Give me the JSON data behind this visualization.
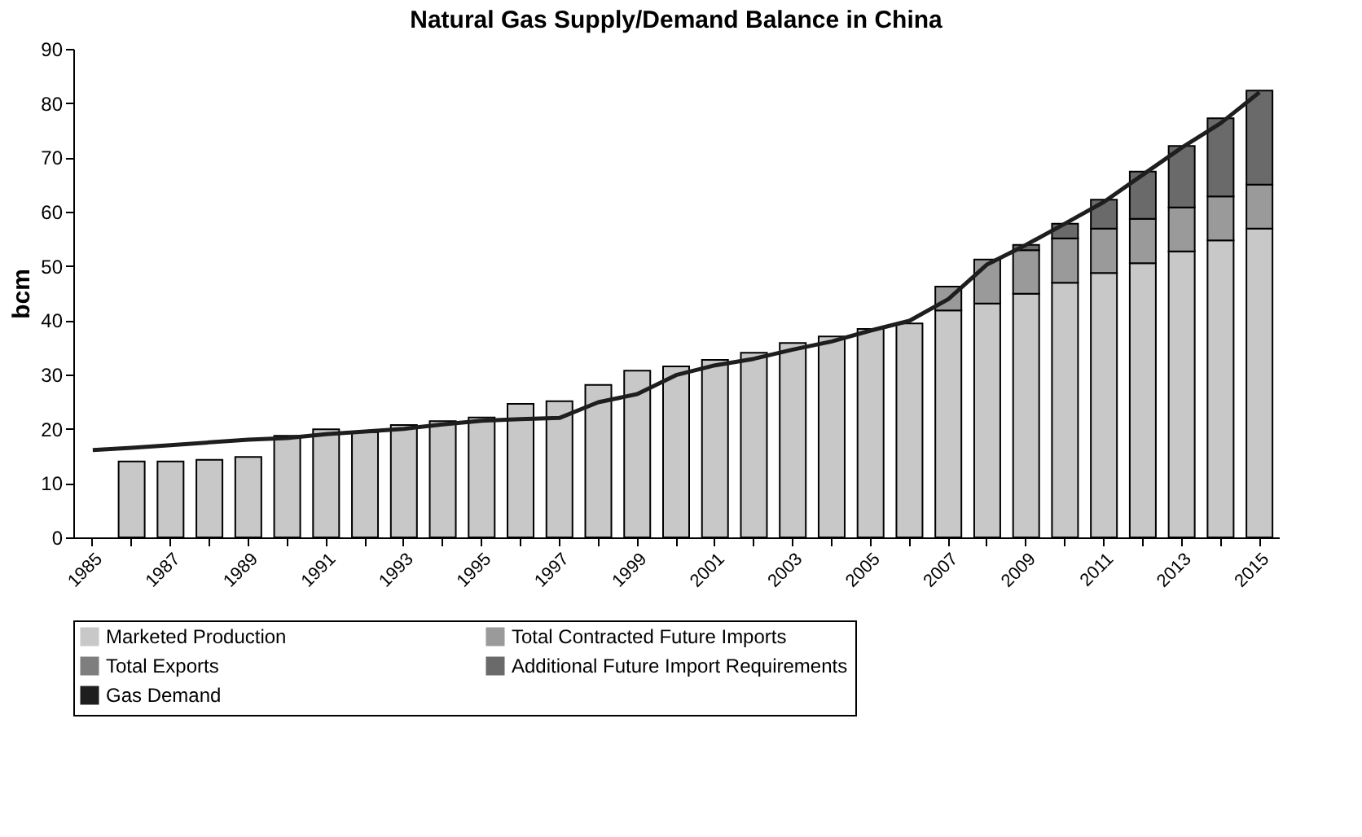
{
  "chart_data": {
    "type": "bar",
    "title": "Natural Gas Supply/Demand Balance in China",
    "ylabel": "bcm",
    "stacked": true,
    "categories": [
      "1985",
      null,
      "1987",
      null,
      "1989",
      null,
      "1991",
      null,
      "1993",
      null,
      "1995",
      null,
      "1997",
      null,
      "1999",
      null,
      "2001",
      null,
      "2003",
      null,
      "2005",
      null,
      "2007",
      null,
      "2009",
      null,
      "2011",
      null,
      "2013",
      null,
      "2015"
    ],
    "series": [
      {
        "name": "Marketed Production",
        "color": "#c8c8c8",
        "values": [
          null,
          14.0,
          14.0,
          14.3,
          14.8,
          18.7,
          19.9,
          19.4,
          20.7,
          21.4,
          22.1,
          24.6,
          25.1,
          28.1,
          30.7,
          31.5,
          32.7,
          34.0,
          35.8,
          37.0,
          38.4,
          39.4,
          41.8,
          43.1,
          44.9,
          46.9,
          48.7,
          50.5,
          52.7,
          54.7,
          56.9
        ]
      },
      {
        "name": "Total Contracted Future Imports",
        "color": "#9a9a9a",
        "values": [
          null,
          null,
          null,
          null,
          null,
          null,
          null,
          null,
          null,
          null,
          null,
          null,
          null,
          null,
          null,
          null,
          null,
          null,
          null,
          null,
          null,
          null,
          4.4,
          8.1,
          8.0,
          8.2,
          8.2,
          8.2,
          8.1,
          8.1,
          8.1
        ]
      },
      {
        "name": "Total Exports",
        "color": "#7e7e7e",
        "values": [
          null,
          null,
          null,
          null,
          null,
          null,
          null,
          null,
          null,
          null,
          null,
          null,
          null,
          null,
          null,
          null,
          null,
          null,
          null,
          null,
          null,
          null,
          null,
          null,
          null,
          null,
          null,
          null,
          null,
          null,
          null
        ]
      },
      {
        "name": "Additional Future Import Requirements",
        "color": "#6a6a6a",
        "values": [
          null,
          null,
          null,
          null,
          null,
          null,
          null,
          null,
          null,
          null,
          null,
          null,
          null,
          null,
          null,
          null,
          null,
          null,
          null,
          null,
          null,
          null,
          null,
          null,
          1.0,
          2.7,
          5.3,
          8.7,
          11.3,
          14.4,
          17.3
        ]
      },
      {
        "name": "Gas Demand",
        "type": "line",
        "color": "#1e1e1e",
        "values": [
          16.1,
          16.5,
          17.0,
          17.5,
          18.0,
          18.3,
          19.0,
          19.5,
          20.0,
          20.8,
          21.5,
          21.8,
          22.0,
          24.9,
          26.4,
          29.9,
          31.7,
          32.9,
          34.6,
          36.1,
          38.1,
          39.9,
          43.9,
          50.3,
          53.9,
          57.8,
          61.8,
          66.8,
          71.8,
          76.3,
          82.0
        ]
      }
    ],
    "ylim": [
      0,
      90
    ],
    "yticks": [
      0,
      10,
      20,
      30,
      40,
      50,
      60,
      70,
      80,
      90
    ],
    "grid": false,
    "legend": "bottom",
    "marker": "none",
    "line_style": "solid"
  }
}
